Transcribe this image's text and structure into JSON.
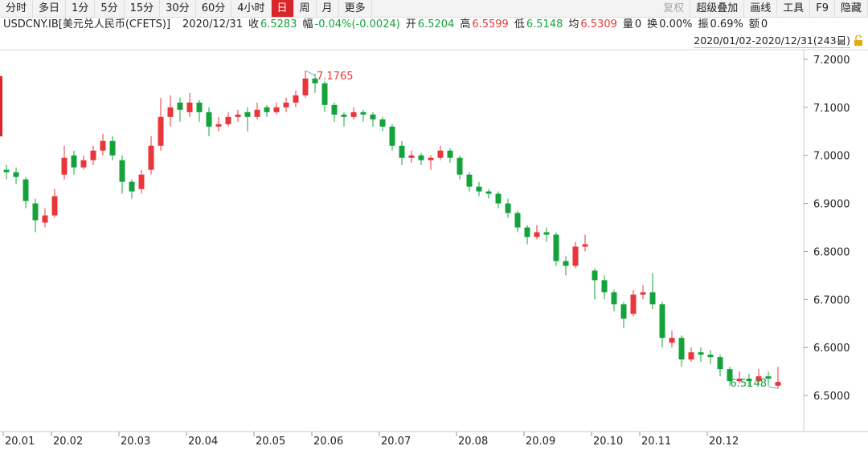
{
  "toolbar": {
    "left": [
      {
        "label": "分时"
      },
      {
        "label": "多日"
      },
      {
        "label": "1分"
      },
      {
        "label": "5分"
      },
      {
        "label": "15分"
      },
      {
        "label": "30分"
      },
      {
        "label": "60分"
      },
      {
        "label": "4小时"
      },
      {
        "label": "日",
        "active": true
      },
      {
        "label": "周"
      },
      {
        "label": "月"
      },
      {
        "label": "更多"
      }
    ],
    "right": [
      {
        "label": "复权",
        "muted": true
      },
      {
        "label": "超级叠加"
      },
      {
        "label": "画线"
      },
      {
        "label": "工具"
      },
      {
        "label": "F9"
      },
      {
        "label": "隐藏"
      }
    ]
  },
  "info": {
    "symbol": "USDCNY.IB[美元兑人民币(CFETS)]",
    "date": "2020/12/31",
    "items": [
      {
        "label": "收",
        "value": "6.5283",
        "color": "#14a33b"
      },
      {
        "label": "幅",
        "value": "-0.04%(-0.0024)",
        "color": "#14a33b"
      },
      {
        "label": "开",
        "value": "6.5204",
        "color": "#14a33b"
      },
      {
        "label": "高",
        "value": "6.5599",
        "color": "#e8363a"
      },
      {
        "label": "低",
        "value": "6.5148",
        "color": "#14a33b"
      },
      {
        "label": "均",
        "value": "6.5309",
        "color": "#e8363a"
      },
      {
        "label": "量",
        "value": "0",
        "color": "#222"
      },
      {
        "label": "换",
        "value": "0.00%",
        "color": "#222"
      },
      {
        "label": "振",
        "value": "0.69%",
        "color": "#222"
      },
      {
        "label": "额",
        "value": "0",
        "color": "#222"
      }
    ]
  },
  "range": "2020/01/02-2020/12/31(243日)",
  "chart_data": {
    "type": "candlestick",
    "up_color": "#e8363a",
    "down_color": "#14a33b",
    "ylim": [
      6.43,
      7.22
    ],
    "yticks": [
      {
        "value": 6.5,
        "label": "6.5000"
      },
      {
        "value": 6.6,
        "label": "6.6000"
      },
      {
        "value": 6.7,
        "label": "6.7000"
      },
      {
        "value": 6.8,
        "label": "6.8000"
      },
      {
        "value": 6.9,
        "label": "6.9000"
      },
      {
        "value": 7.0,
        "label": "7.0000"
      },
      {
        "value": 7.1,
        "label": "7.1000"
      },
      {
        "value": 7.2,
        "label": "7.2000"
      }
    ],
    "categories": [
      "20.01",
      null,
      null,
      null,
      null,
      "20.02",
      null,
      null,
      null,
      null,
      null,
      null,
      "20.03",
      null,
      null,
      null,
      null,
      null,
      null,
      "20.04",
      null,
      null,
      null,
      null,
      null,
      null,
      "20.05",
      null,
      null,
      null,
      null,
      null,
      "20.06",
      null,
      null,
      null,
      null,
      null,
      null,
      "20.07",
      null,
      null,
      null,
      null,
      null,
      null,
      null,
      "20.08",
      null,
      null,
      null,
      null,
      null,
      null,
      "20.09",
      null,
      null,
      null,
      null,
      null,
      null,
      "20.10",
      null,
      null,
      null,
      null,
      "20.11",
      null,
      null,
      null,
      null,
      null,
      null,
      "20.12",
      null,
      null,
      null,
      null,
      null,
      null,
      null
    ],
    "candles": [
      [
        6.97,
        6.98,
        6.95,
        6.965
      ],
      [
        6.965,
        6.975,
        6.94,
        6.955
      ],
      [
        6.95,
        6.955,
        6.89,
        6.905
      ],
      [
        6.9,
        6.91,
        6.84,
        6.865
      ],
      [
        6.86,
        6.89,
        6.85,
        6.875
      ],
      [
        6.875,
        6.93,
        6.87,
        6.915
      ],
      [
        6.96,
        7.02,
        6.95,
        6.995
      ],
      [
        7.0,
        7.01,
        6.96,
        6.975
      ],
      [
        6.975,
        7.0,
        6.97,
        6.99
      ],
      [
        6.99,
        7.02,
        6.98,
        7.01
      ],
      [
        7.01,
        7.045,
        7.0,
        7.03
      ],
      [
        7.03,
        7.04,
        6.99,
        7.0
      ],
      [
        6.99,
        7.0,
        6.92,
        6.945
      ],
      [
        6.945,
        6.95,
        6.91,
        6.925
      ],
      [
        6.93,
        6.97,
        6.92,
        6.96
      ],
      [
        6.97,
        7.04,
        6.96,
        7.02
      ],
      [
        7.02,
        7.12,
        7.01,
        7.08
      ],
      [
        7.08,
        7.125,
        7.06,
        7.1
      ],
      [
        7.11,
        7.12,
        7.07,
        7.095
      ],
      [
        7.09,
        7.13,
        7.08,
        7.11
      ],
      [
        7.11,
        7.115,
        7.07,
        7.09
      ],
      [
        7.09,
        7.1,
        7.04,
        7.06
      ],
      [
        7.06,
        7.08,
        7.05,
        7.065
      ],
      [
        7.065,
        7.09,
        7.06,
        7.08
      ],
      [
        7.08,
        7.095,
        7.07,
        7.085
      ],
      [
        7.09,
        7.1,
        7.05,
        7.08
      ],
      [
        7.08,
        7.11,
        7.075,
        7.095
      ],
      [
        7.1,
        7.105,
        7.08,
        7.09
      ],
      [
        7.09,
        7.11,
        7.085,
        7.1
      ],
      [
        7.1,
        7.12,
        7.09,
        7.11
      ],
      [
        7.11,
        7.135,
        7.1,
        7.125
      ],
      [
        7.125,
        7.1765,
        7.12,
        7.16
      ],
      [
        7.16,
        7.17,
        7.13,
        7.15
      ],
      [
        7.15,
        7.155,
        7.09,
        7.105
      ],
      [
        7.105,
        7.11,
        7.07,
        7.085
      ],
      [
        7.085,
        7.09,
        7.06,
        7.08
      ],
      [
        7.08,
        7.1,
        7.075,
        7.09
      ],
      [
        7.09,
        7.095,
        7.07,
        7.085
      ],
      [
        7.085,
        7.09,
        7.06,
        7.075
      ],
      [
        7.075,
        7.08,
        7.05,
        7.06
      ],
      [
        7.06,
        7.065,
        7.01,
        7.02
      ],
      [
        7.02,
        7.03,
        6.98,
        6.995
      ],
      [
        6.995,
        7.01,
        6.985,
        7.0
      ],
      [
        7.0,
        7.005,
        6.98,
        6.99
      ],
      [
        6.99,
        7.0,
        6.97,
        6.995
      ],
      [
        6.995,
        7.02,
        6.99,
        7.01
      ],
      [
        7.01,
        7.015,
        6.985,
        6.995
      ],
      [
        6.995,
        7.0,
        6.95,
        6.96
      ],
      [
        6.96,
        6.965,
        6.925,
        6.935
      ],
      [
        6.935,
        6.945,
        6.915,
        6.925
      ],
      [
        6.925,
        6.93,
        6.91,
        6.92
      ],
      [
        6.92,
        6.925,
        6.89,
        6.9
      ],
      [
        6.9,
        6.91,
        6.87,
        6.88
      ],
      [
        6.88,
        6.885,
        6.84,
        6.85
      ],
      [
        6.85,
        6.855,
        6.815,
        6.83
      ],
      [
        6.83,
        6.855,
        6.825,
        6.84
      ],
      [
        6.84,
        6.85,
        6.82,
        6.835
      ],
      [
        6.835,
        6.84,
        6.77,
        6.78
      ],
      [
        6.78,
        6.79,
        6.75,
        6.77
      ],
      [
        6.77,
        6.82,
        6.765,
        6.81
      ],
      [
        6.81,
        6.835,
        6.8,
        6.815
      ],
      [
        6.76,
        6.765,
        6.7,
        6.74
      ],
      [
        6.74,
        6.75,
        6.7,
        6.715
      ],
      [
        6.715,
        6.72,
        6.675,
        6.69
      ],
      [
        6.69,
        6.695,
        6.64,
        6.66
      ],
      [
        6.67,
        6.72,
        6.665,
        6.71
      ],
      [
        6.71,
        6.73,
        6.7,
        6.715
      ],
      [
        6.715,
        6.755,
        6.68,
        6.69
      ],
      [
        6.69,
        6.695,
        6.6,
        6.62
      ],
      [
        6.61,
        6.635,
        6.6,
        6.62
      ],
      [
        6.62,
        6.625,
        6.56,
        6.575
      ],
      [
        6.575,
        6.6,
        6.57,
        6.59
      ],
      [
        6.59,
        6.6,
        6.57,
        6.585
      ],
      [
        6.585,
        6.595,
        6.565,
        6.58
      ],
      [
        6.58,
        6.585,
        6.54,
        6.555
      ],
      [
        6.555,
        6.56,
        6.52,
        6.53
      ],
      [
        6.53,
        6.55,
        6.525,
        6.535
      ],
      [
        6.535,
        6.545,
        6.52,
        6.53
      ],
      [
        6.53,
        6.555,
        6.525,
        6.54
      ],
      [
        6.54,
        6.55,
        6.52,
        6.535
      ],
      [
        6.5204,
        6.5599,
        6.5148,
        6.5283
      ]
    ]
  }
}
